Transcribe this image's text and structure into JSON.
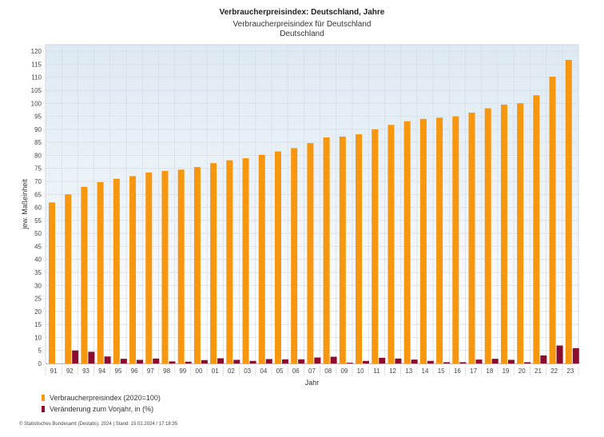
{
  "chart_data": {
    "type": "bar",
    "title": "Verbraucherpreisindex: Deutschland, Jahre",
    "subtitle": [
      "Verbraucherpreisindex für Deutschland",
      "Deutschland"
    ],
    "xlabel": "Jahr",
    "ylabel": "jew. Maßeinheit",
    "ylim": [
      0,
      122.5
    ],
    "yticks": [
      0,
      5,
      10,
      15,
      20,
      25,
      30,
      35,
      40,
      45,
      50,
      55,
      60,
      65,
      70,
      75,
      80,
      85,
      90,
      95,
      100,
      105,
      110,
      115,
      120
    ],
    "grid": true,
    "legend_position": "bottom-left",
    "categories": [
      "91",
      "92",
      "93",
      "94",
      "95",
      "96",
      "97",
      "98",
      "99",
      "00",
      "01",
      "02",
      "03",
      "04",
      "05",
      "06",
      "07",
      "08",
      "09",
      "10",
      "11",
      "12",
      "13",
      "14",
      "15",
      "16",
      "17",
      "18",
      "19",
      "20",
      "21",
      "22",
      "23"
    ],
    "series": [
      {
        "name": "Verbraucherpreisindex (2020=100)",
        "color": "#f7960f",
        "values": [
          61.9,
          65.0,
          67.9,
          69.7,
          71.0,
          72.0,
          73.4,
          74.0,
          74.5,
          75.5,
          77.0,
          78.1,
          78.9,
          80.2,
          81.5,
          82.8,
          84.7,
          86.9,
          87.2,
          88.1,
          90.0,
          91.7,
          93.1,
          94.0,
          94.5,
          95.0,
          96.4,
          98.1,
          99.5,
          100.0,
          103.1,
          110.2,
          116.7
        ]
      },
      {
        "name": "Veränderung zum Vorjahr, in (%)",
        "color": "#8b0c2c",
        "values": [
          null,
          5.0,
          4.5,
          2.7,
          1.8,
          1.4,
          1.9,
          0.8,
          0.7,
          1.3,
          2.0,
          1.4,
          1.0,
          1.7,
          1.6,
          1.6,
          2.3,
          2.6,
          0.3,
          1.0,
          2.2,
          1.9,
          1.5,
          1.0,
          0.5,
          0.5,
          1.5,
          1.8,
          1.4,
          0.5,
          3.1,
          6.9,
          5.9
        ]
      }
    ]
  },
  "footer": "© Statistisches Bundesamt (Destatis), 2024 | Stand: 15.02.2024 / 17:18:35"
}
